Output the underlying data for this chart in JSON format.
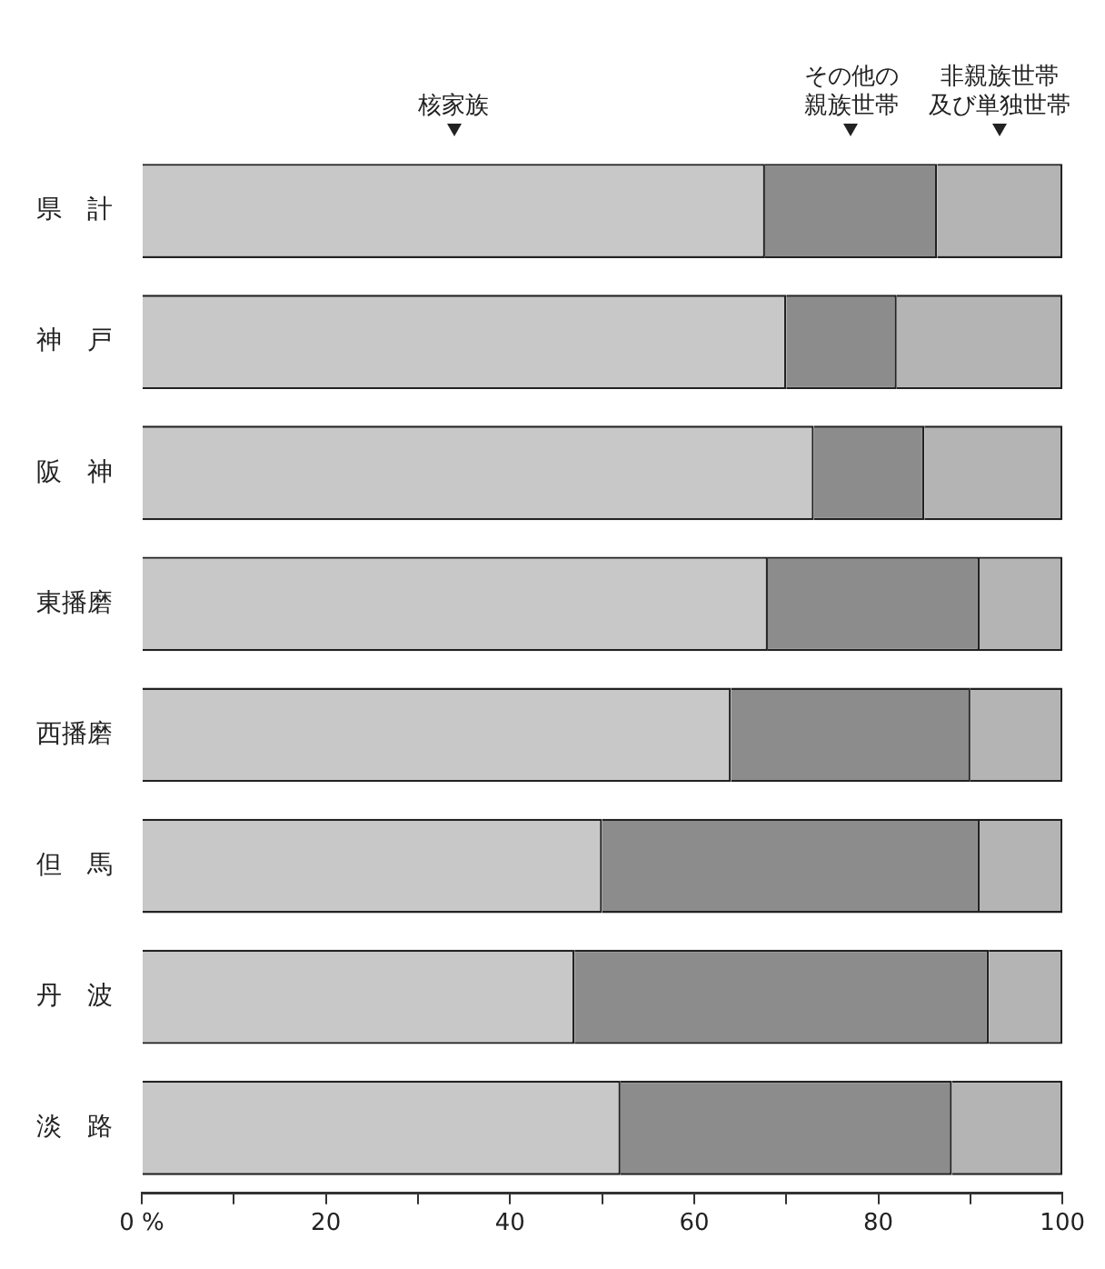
{
  "chart_data": {
    "type": "bar",
    "orientation": "horizontal",
    "stacked": true,
    "categories": [
      "県　計",
      "神　戸",
      "阪　神",
      "東播磨",
      "西播磨",
      "但　馬",
      "丹　波",
      "淡　路"
    ],
    "series": [
      {
        "name": "核家族",
        "color": "#c8c8c8",
        "values": [
          67.7,
          70,
          73,
          68,
          64,
          50,
          47,
          52
        ]
      },
      {
        "name": "その他の親族世帯",
        "color": "#8c8c8c",
        "values": [
          18.7,
          12,
          12,
          23,
          26,
          41,
          45,
          36
        ]
      },
      {
        "name": "非親族世帯及び単独世帯",
        "color": "#b4b4b4",
        "values": [
          13.6,
          18,
          15,
          9,
          10,
          9,
          8,
          12
        ]
      }
    ],
    "xlim": [
      0,
      100
    ],
    "xticks": [
      {
        "value": 0,
        "label": "0 %"
      },
      {
        "value": 10,
        "label": null
      },
      20,
      {
        "value": 30,
        "label": null
      },
      40,
      {
        "value": 50,
        "label": null
      },
      60,
      {
        "value": 70,
        "label": null
      },
      80,
      {
        "value": 90,
        "label": null
      },
      100
    ],
    "legend": "top",
    "grid": false
  }
}
